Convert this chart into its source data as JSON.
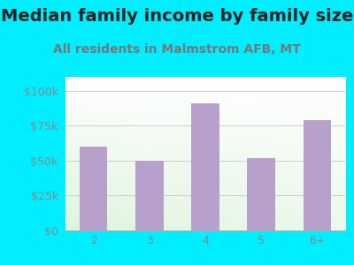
{
  "title": "Median family income by family size",
  "subtitle": "All residents in Malmstrom AFB, MT",
  "categories": [
    "2",
    "3",
    "4",
    "5",
    "6+"
  ],
  "values": [
    60000,
    50000,
    91000,
    52000,
    79000
  ],
  "bar_color": "#b8a0cc",
  "background_color": "#00eeff",
  "yticks": [
    0,
    25000,
    50000,
    75000,
    100000
  ],
  "ytick_labels": [
    "$0",
    "$25k",
    "$50k",
    "$75k",
    "$100k"
  ],
  "ylim": [
    0,
    110000
  ],
  "title_color": "#222222",
  "subtitle_color": "#777777",
  "tick_color": "#888888",
  "title_fontsize": 14,
  "subtitle_fontsize": 10,
  "tick_fontsize": 9,
  "grid_color": "#cccccc",
  "plot_bg_color_tl": "#e0f0e0",
  "plot_bg_color_br": "#f8fff8"
}
